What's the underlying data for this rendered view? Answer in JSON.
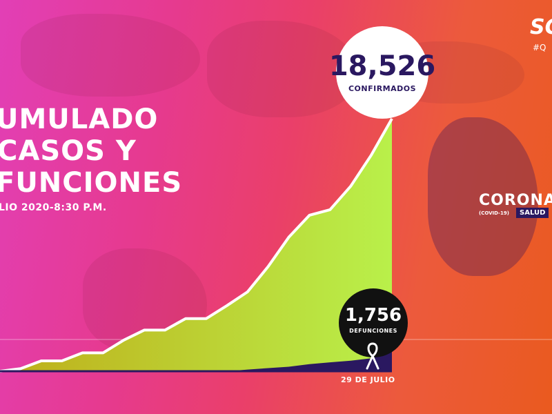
{
  "title_lines": [
    "UMULADO",
    "CASOS Y",
    "FUNCIONES"
  ],
  "subtitle": "LIO 2020-8:30 P.M.",
  "logo": "SC",
  "hashtag": "#Q",
  "right_panel": {
    "word": "CORONAV",
    "small": "(COVID-19)",
    "badge": "SALUD"
  },
  "confirmed": {
    "value": "18,526",
    "label": "CONFIRMADOS"
  },
  "deaths": {
    "value": "1,756",
    "label": "DEFUNCIONES"
  },
  "end_date": "29 DE JULIO",
  "colors": {
    "confirmed_fill": "#d8e21c",
    "deaths_fill": "#2a1860",
    "line": "#ffffff",
    "ribbon": "#ffffff"
  },
  "chart_data": {
    "type": "area",
    "title": "UMULADO CASOS Y FUNCIONES",
    "x_end_label": "29 DE JULIO",
    "ylim": [
      0,
      18526
    ],
    "series": [
      {
        "name": "CONFIRMADOS",
        "values": [
          0,
          190,
          760,
          760,
          1350,
          1350,
          2280,
          3020,
          3020,
          3860,
          3860,
          4810,
          5820,
          7680,
          9830,
          11440,
          11850,
          13570,
          15860,
          18526
        ]
      },
      {
        "name": "DEFUNCIONES",
        "values": [
          0,
          0,
          0,
          0,
          0,
          0,
          0,
          0,
          0,
          0,
          0,
          0,
          120,
          230,
          330,
          520,
          650,
          770,
          950,
          1756
        ]
      }
    ]
  }
}
